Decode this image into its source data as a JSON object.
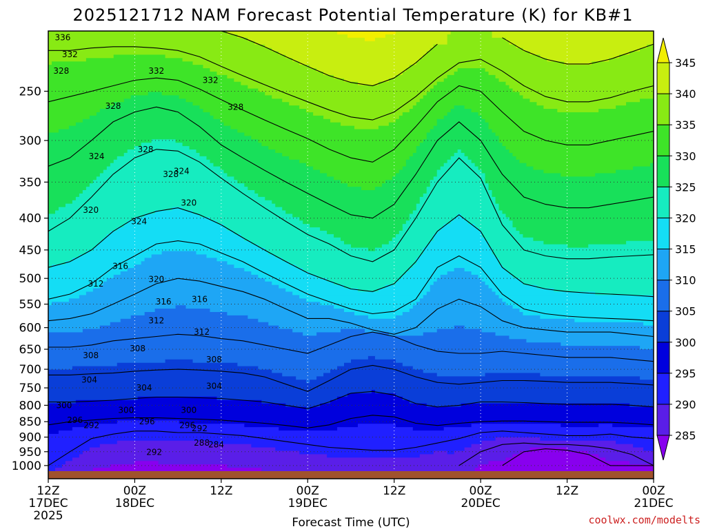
{
  "chart_data": {
    "type": "heatmap",
    "title": "2025121712 NAM Forecast Potential Temperature (K) for KB#1",
    "xlabel": "Forecast Time (UTC)",
    "ylabel": "",
    "y_axis": {
      "scale": "log-pressure",
      "range_hPa": [
        1050,
        200
      ],
      "ticks": [
        250,
        300,
        350,
        400,
        450,
        500,
        550,
        600,
        650,
        700,
        750,
        800,
        850,
        900,
        950,
        1000
      ]
    },
    "x_axis": {
      "range_hours": [
        0,
        84
      ],
      "ticks": [
        {
          "hour": 0,
          "line1": "12Z",
          "line2": "17DEC",
          "line3": "2025"
        },
        {
          "hour": 12,
          "line1": "00Z",
          "line2": "18DEC",
          "line3": ""
        },
        {
          "hour": 24,
          "line1": "12Z",
          "line2": "",
          "line3": ""
        },
        {
          "hour": 36,
          "line1": "00Z",
          "line2": "19DEC",
          "line3": ""
        },
        {
          "hour": 48,
          "line1": "12Z",
          "line2": "",
          "line3": ""
        },
        {
          "hour": 60,
          "line1": "00Z",
          "line2": "20DEC",
          "line3": ""
        },
        {
          "hour": 72,
          "line1": "12Z",
          "line2": "",
          "line3": ""
        },
        {
          "hour": 84,
          "line1": "00Z",
          "line2": "21DEC",
          "line3": ""
        }
      ]
    },
    "colorbar": {
      "levels": [
        285,
        290,
        295,
        300,
        305,
        310,
        315,
        320,
        325,
        330,
        335,
        340,
        345
      ],
      "colors": [
        "#8800ee",
        "#5a1ee8",
        "#2020ff",
        "#0000dd",
        "#0a3ed8",
        "#1a6eea",
        "#1ea6f5",
        "#14ddf5",
        "#16ecc0",
        "#18e05a",
        "#3ee428",
        "#88ea14",
        "#c8ee10",
        "#f2ee00"
      ]
    },
    "contour_interval_K": 4,
    "isentropes": [
      {
        "theta": 284,
        "pressure_hPa": [
          null,
          null,
          null,
          null,
          null,
          null,
          null,
          null,
          null,
          null,
          null,
          null,
          null,
          null,
          null,
          null,
          null,
          null,
          null,
          null,
          null,
          1000,
          950,
          940,
          945,
          960,
          1000,
          1000,
          1000
        ]
      },
      {
        "theta": 288,
        "pressure_hPa": [
          null,
          null,
          null,
          null,
          null,
          null,
          null,
          null,
          null,
          null,
          null,
          null,
          null,
          null,
          null,
          null,
          null,
          null,
          null,
          1000,
          950,
          925,
          920,
          925,
          925,
          930,
          940,
          960,
          1000
        ]
      },
      {
        "theta": 292,
        "pressure_hPa": [
          1000,
          950,
          905,
          890,
          880,
          880,
          885,
          885,
          890,
          895,
          905,
          915,
          925,
          935,
          940,
          945,
          945,
          935,
          920,
          905,
          885,
          880,
          885,
          890,
          895,
          895,
          890,
          900,
          905
        ]
      },
      {
        "theta": 296,
        "pressure_hPa": [
          860,
          850,
          845,
          840,
          838,
          838,
          840,
          842,
          845,
          850,
          855,
          862,
          870,
          860,
          840,
          830,
          835,
          855,
          862,
          855,
          850,
          848,
          848,
          850,
          852,
          852,
          852,
          855,
          860
        ]
      },
      {
        "theta": 300,
        "pressure_hPa": [
          790,
          790,
          788,
          785,
          780,
          776,
          776,
          778,
          780,
          785,
          790,
          800,
          810,
          790,
          765,
          760,
          770,
          795,
          805,
          800,
          790,
          790,
          792,
          795,
          797,
          797,
          797,
          800,
          805
        ]
      },
      {
        "theta": 304,
        "pressure_hPa": [
          715,
          715,
          712,
          710,
          705,
          702,
          700,
          702,
          705,
          710,
          720,
          740,
          760,
          730,
          700,
          690,
          700,
          720,
          735,
          740,
          735,
          730,
          730,
          732,
          735,
          735,
          735,
          738,
          742
        ]
      },
      {
        "theta": 308,
        "pressure_hPa": [
          645,
          645,
          640,
          630,
          625,
          620,
          615,
          618,
          625,
          630,
          640,
          650,
          660,
          640,
          620,
          610,
          620,
          640,
          655,
          660,
          660,
          655,
          660,
          665,
          670,
          670,
          670,
          675,
          680
        ]
      },
      {
        "theta": 312,
        "pressure_hPa": [
          585,
          580,
          570,
          550,
          530,
          510,
          500,
          505,
          515,
          525,
          540,
          560,
          580,
          580,
          590,
          605,
          615,
          600,
          560,
          540,
          555,
          585,
          600,
          605,
          610,
          610,
          610,
          615,
          620
        ]
      },
      {
        "theta": 316,
        "pressure_hPa": [
          540,
          530,
          510,
          480,
          460,
          440,
          435,
          440,
          455,
          470,
          490,
          510,
          530,
          545,
          560,
          570,
          565,
          540,
          480,
          460,
          480,
          530,
          560,
          570,
          575,
          578,
          580,
          582,
          585
        ]
      },
      {
        "theta": 320,
        "pressure_hPa": [
          480,
          470,
          450,
          420,
          400,
          390,
          385,
          395,
          410,
          430,
          450,
          470,
          490,
          505,
          520,
          525,
          510,
          470,
          420,
          395,
          420,
          480,
          510,
          520,
          525,
          528,
          530,
          532,
          535
        ]
      },
      {
        "theta": 324,
        "pressure_hPa": [
          420,
          400,
          370,
          340,
          320,
          310,
          312,
          325,
          345,
          365,
          385,
          405,
          425,
          440,
          460,
          470,
          450,
          400,
          350,
          320,
          345,
          410,
          450,
          460,
          465,
          465,
          462,
          460,
          458
        ]
      },
      {
        "theta": 328,
        "pressure_hPa": [
          330,
          320,
          300,
          280,
          270,
          265,
          270,
          285,
          305,
          320,
          335,
          350,
          365,
          380,
          395,
          400,
          380,
          340,
          300,
          280,
          300,
          340,
          370,
          380,
          385,
          385,
          380,
          375,
          370
        ]
      },
      {
        "theta": 332,
        "pressure_hPa": [
          260,
          255,
          250,
          245,
          240,
          238,
          240,
          248,
          258,
          268,
          278,
          288,
          298,
          310,
          320,
          325,
          310,
          285,
          260,
          245,
          250,
          270,
          290,
          300,
          305,
          305,
          300,
          295,
          290
        ]
      },
      {
        "theta": 336,
        "pressure_hPa": [
          215,
          215,
          213,
          212,
          212,
          213,
          215,
          220,
          228,
          236,
          244,
          252,
          260,
          268,
          275,
          278,
          270,
          255,
          238,
          225,
          222,
          232,
          245,
          255,
          260,
          260,
          256,
          250,
          245
        ]
      },
      {
        "theta": 340,
        "pressure_hPa": [
          null,
          null,
          null,
          null,
          null,
          null,
          null,
          null,
          200,
          205,
          212,
          220,
          228,
          236,
          242,
          245,
          238,
          225,
          210,
          null,
          null,
          205,
          215,
          222,
          226,
          226,
          222,
          216,
          210
        ]
      }
    ],
    "contour_labels": [
      {
        "text": "336",
        "hour": 2.0,
        "p": 205
      },
      {
        "text": "332",
        "hour": 3.0,
        "p": 218
      },
      {
        "text": "328",
        "hour": 1.8,
        "p": 232
      },
      {
        "text": "328",
        "hour": 9.0,
        "p": 264
      },
      {
        "text": "324",
        "hour": 6.7,
        "p": 318
      },
      {
        "text": "320",
        "hour": 5.9,
        "p": 388
      },
      {
        "text": "312",
        "hour": 6.6,
        "p": 510
      },
      {
        "text": "316",
        "hour": 10.0,
        "p": 478
      },
      {
        "text": "324",
        "hour": 12.6,
        "p": 405
      },
      {
        "text": "328",
        "hour": 13.5,
        "p": 310
      },
      {
        "text": "332",
        "hour": 15.0,
        "p": 232
      },
      {
        "text": "320",
        "hour": 15.0,
        "p": 502
      },
      {
        "text": "316",
        "hour": 16.0,
        "p": 545
      },
      {
        "text": "312",
        "hour": 15.0,
        "p": 585
      },
      {
        "text": "308",
        "hour": 5.9,
        "p": 665
      },
      {
        "text": "308",
        "hour": 12.4,
        "p": 648
      },
      {
        "text": "308",
        "hour": 23.0,
        "p": 675
      },
      {
        "text": "304",
        "hour": 5.7,
        "p": 728
      },
      {
        "text": "304",
        "hour": 13.3,
        "p": 750
      },
      {
        "text": "304",
        "hour": 23.0,
        "p": 745
      },
      {
        "text": "300",
        "hour": 2.2,
        "p": 800
      },
      {
        "text": "300",
        "hour": 10.8,
        "p": 815
      },
      {
        "text": "300",
        "hour": 19.5,
        "p": 815
      },
      {
        "text": "296",
        "hour": 3.7,
        "p": 845
      },
      {
        "text": "296",
        "hour": 13.7,
        "p": 850
      },
      {
        "text": "296",
        "hour": 19.3,
        "p": 862
      },
      {
        "text": "292",
        "hour": 6.0,
        "p": 862
      },
      {
        "text": "292",
        "hour": 14.7,
        "p": 952
      },
      {
        "text": "292",
        "hour": 21.0,
        "p": 872
      },
      {
        "text": "332",
        "hour": 22.5,
        "p": 240
      },
      {
        "text": "328",
        "hour": 17.0,
        "p": 340
      },
      {
        "text": "324",
        "hour": 18.5,
        "p": 336
      },
      {
        "text": "320",
        "hour": 19.5,
        "p": 378
      },
      {
        "text": "316",
        "hour": 21.0,
        "p": 540
      },
      {
        "text": "312",
        "hour": 21.3,
        "p": 610
      },
      {
        "text": "328",
        "hour": 26.0,
        "p": 265
      },
      {
        "text": "288",
        "hour": 21.3,
        "p": 920
      },
      {
        "text": "284",
        "hour": 23.3,
        "p": 925
      }
    ]
  },
  "credit": "coolwx.com/modelts"
}
